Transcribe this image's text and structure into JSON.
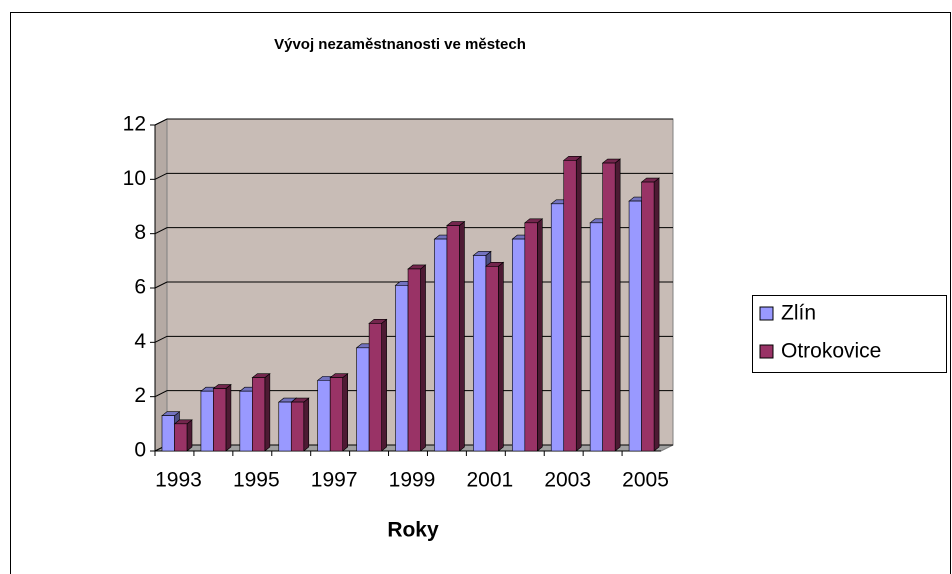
{
  "chart_data": {
    "type": "bar",
    "title": "Vývoj nezaměstnanosti ve městech",
    "x_label": "Roky",
    "categories": [
      "1993",
      null,
      "1995",
      null,
      "1997",
      null,
      "1999",
      null,
      "2001",
      null,
      "2003",
      null,
      "2005"
    ],
    "series": [
      {
        "name": "Zlín",
        "color": "#9999ff",
        "values": [
          1.3,
          2.2,
          2.2,
          1.8,
          2.6,
          3.8,
          6.1,
          7.8,
          7.2,
          7.8,
          9.1,
          8.4,
          9.2
        ]
      },
      {
        "name": "Otrokovice",
        "color": "#993366",
        "values": [
          1.0,
          2.3,
          2.7,
          1.8,
          2.7,
          4.7,
          6.7,
          8.3,
          6.8,
          8.4,
          10.7,
          10.6,
          9.9
        ]
      }
    ],
    "ylim": [
      0,
      12
    ],
    "yticks": [
      0,
      2,
      4,
      6,
      8,
      10,
      12
    ],
    "grid": true,
    "legend": "right"
  }
}
